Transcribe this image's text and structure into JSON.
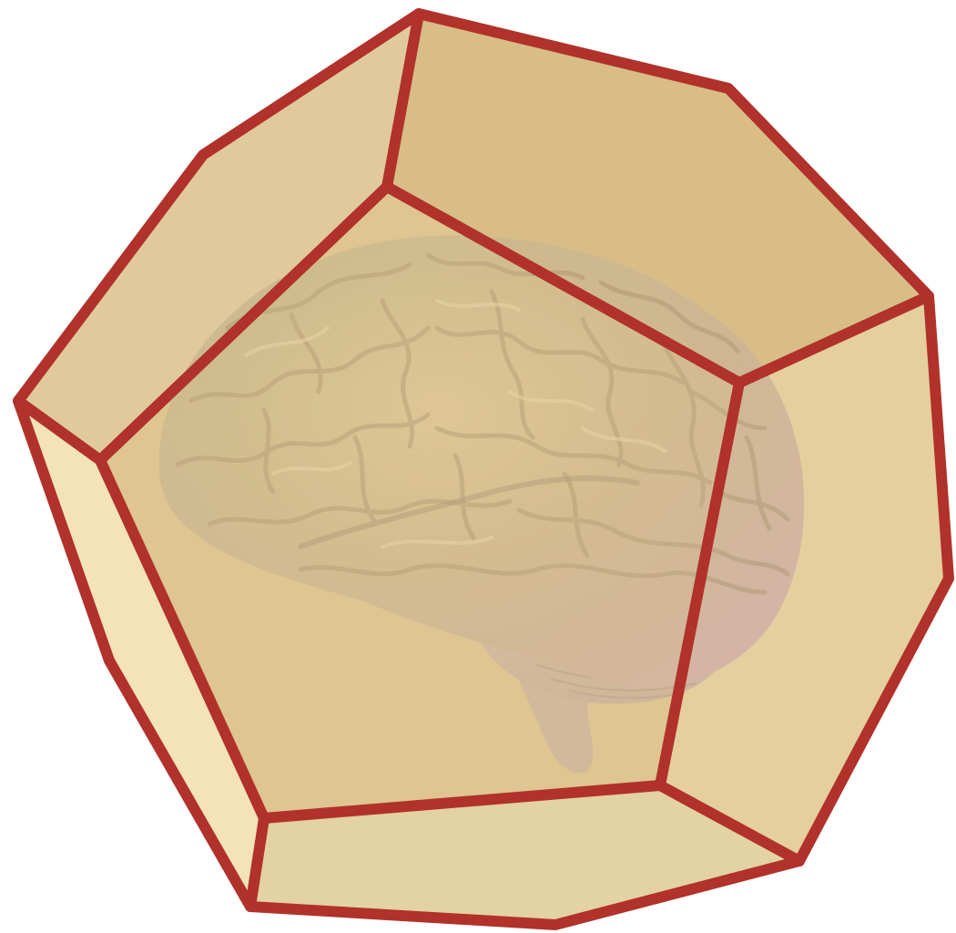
{
  "scene": {
    "subject": "brain",
    "container": "dodecahedron"
  },
  "colors": {
    "background": "#ffffff",
    "edge": "#b0322a",
    "face_top_left": "#e1c99e",
    "face_top": "#d8bd87",
    "face_right": "#e5cf9e",
    "face_front": "#dfc592",
    "face_left": "#f3e3b7",
    "face_bottom": "#e3d2a2",
    "brain_light": "#d9c19a",
    "brain_mid": "#c7b08d",
    "brain_shadow": "#b8a08f",
    "brain_green": "#b7b487",
    "brain_pink": "#d3b2a8",
    "cerebellum": "#ccb1a5"
  }
}
